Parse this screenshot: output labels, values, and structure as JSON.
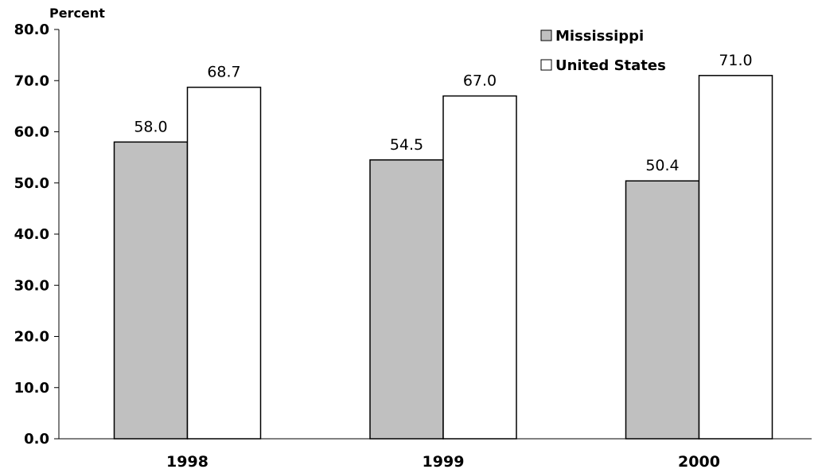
{
  "chart_data": {
    "type": "bar",
    "ylabel": "Percent",
    "ylim": [
      0,
      80
    ],
    "yticks": [
      "0.0",
      "10.0",
      "20.0",
      "30.0",
      "40.0",
      "50.0",
      "60.0",
      "70.0",
      "80.0"
    ],
    "grid": false,
    "legend_position": "top-right",
    "categories": [
      "1998",
      "1999",
      "2000"
    ],
    "series": [
      {
        "name": "Mississippi",
        "values": [
          58.0,
          54.5,
          50.4
        ],
        "labels": [
          "58.0",
          "54.5",
          "50.4"
        ],
        "color": "#c0c0c0"
      },
      {
        "name": "United States",
        "values": [
          68.7,
          67.0,
          71.0
        ],
        "labels": [
          "68.7",
          "67.0",
          "71.0"
        ],
        "color": "#ffffff"
      }
    ]
  }
}
